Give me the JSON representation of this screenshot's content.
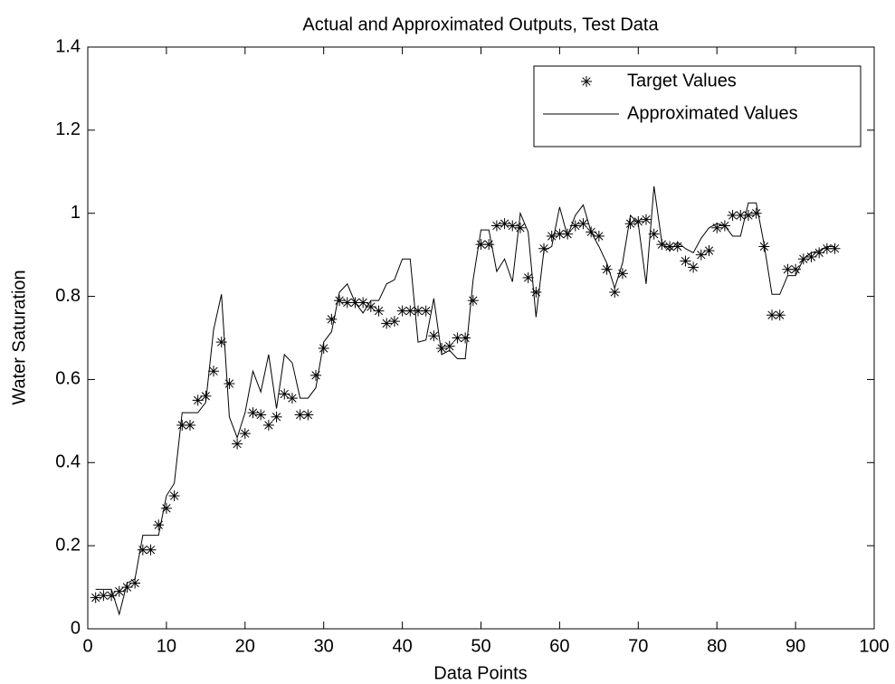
{
  "chart_data": {
    "type": "line",
    "title": "Actual and Approximated Outputs, Test Data",
    "x_label": "Data Points",
    "y_label": "Water Saturation",
    "x": [
      1,
      2,
      3,
      4,
      5,
      6,
      7,
      8,
      9,
      10,
      11,
      12,
      13,
      14,
      15,
      16,
      17,
      18,
      19,
      20,
      21,
      22,
      23,
      24,
      25,
      26,
      27,
      28,
      29,
      30,
      31,
      32,
      33,
      34,
      35,
      36,
      37,
      38,
      39,
      40,
      41,
      42,
      43,
      44,
      45,
      46,
      47,
      48,
      49,
      50,
      51,
      52,
      53,
      54,
      55,
      56,
      57,
      58,
      59,
      60,
      61,
      62,
      63,
      64,
      65,
      66,
      67,
      68,
      69,
      70,
      71,
      72,
      73,
      74,
      75,
      76,
      77,
      78,
      79,
      80,
      81,
      82,
      83,
      84,
      85,
      86,
      87,
      88,
      89,
      90,
      91,
      92,
      93,
      94,
      95
    ],
    "series": [
      {
        "name": "Target Values",
        "color": "#000000",
        "marker": "*",
        "values": [
          0.075,
          0.08,
          0.08,
          0.09,
          0.1,
          0.11,
          0.19,
          0.19,
          0.25,
          0.29,
          0.32,
          0.49,
          0.49,
          0.55,
          0.56,
          0.62,
          0.69,
          0.59,
          0.445,
          0.47,
          0.52,
          0.515,
          0.49,
          0.51,
          0.565,
          0.555,
          0.515,
          0.515,
          0.61,
          0.675,
          0.745,
          0.79,
          0.785,
          0.785,
          0.785,
          0.775,
          0.765,
          0.735,
          0.74,
          0.765,
          0.765,
          0.765,
          0.765,
          0.705,
          0.675,
          0.68,
          0.7,
          0.7,
          0.79,
          0.925,
          0.925,
          0.97,
          0.975,
          0.97,
          0.965,
          0.845,
          0.81,
          0.915,
          0.945,
          0.95,
          0.95,
          0.97,
          0.975,
          0.955,
          0.945,
          0.865,
          0.81,
          0.855,
          0.975,
          0.98,
          0.985,
          0.95,
          0.925,
          0.92,
          0.92,
          0.885,
          0.87,
          0.9,
          0.91,
          0.965,
          0.97,
          0.995,
          0.995,
          0.995,
          1.0,
          0.92,
          0.755,
          0.755,
          0.865,
          0.865,
          0.89,
          0.895,
          0.905,
          0.915,
          0.915
        ]
      },
      {
        "name": "Approximated Values",
        "color": "#000000",
        "marker": "none",
        "values": [
          0.095,
          0.095,
          0.095,
          0.035,
          0.11,
          0.12,
          0.225,
          0.225,
          0.225,
          0.32,
          0.35,
          0.52,
          0.52,
          0.52,
          0.545,
          0.72,
          0.805,
          0.51,
          0.46,
          0.52,
          0.62,
          0.57,
          0.66,
          0.53,
          0.66,
          0.64,
          0.555,
          0.555,
          0.58,
          0.69,
          0.715,
          0.81,
          0.83,
          0.785,
          0.76,
          0.79,
          0.79,
          0.83,
          0.84,
          0.89,
          0.89,
          0.69,
          0.695,
          0.795,
          0.66,
          0.67,
          0.65,
          0.65,
          0.84,
          0.96,
          0.96,
          0.86,
          0.89,
          0.835,
          1.0,
          0.955,
          0.75,
          0.91,
          0.92,
          1.015,
          0.945,
          0.995,
          1.02,
          0.955,
          0.92,
          0.88,
          0.82,
          0.88,
          0.995,
          0.975,
          0.83,
          1.065,
          0.93,
          0.91,
          0.93,
          0.915,
          0.905,
          0.94,
          0.965,
          0.975,
          0.97,
          0.945,
          0.945,
          1.025,
          1.025,
          0.925,
          0.805,
          0.805,
          0.85,
          0.85,
          0.89,
          0.905,
          0.91,
          0.92,
          0.92
        ]
      }
    ],
    "xlim": [
      0,
      100
    ],
    "xticks": [
      0,
      10,
      20,
      30,
      40,
      50,
      60,
      70,
      80,
      90,
      100
    ],
    "ylim": [
      0,
      1.4
    ],
    "yticks": [
      0,
      0.2,
      0.4,
      0.6,
      0.8,
      1,
      1.2,
      1.4
    ],
    "legend": "upper right",
    "grid": false
  }
}
